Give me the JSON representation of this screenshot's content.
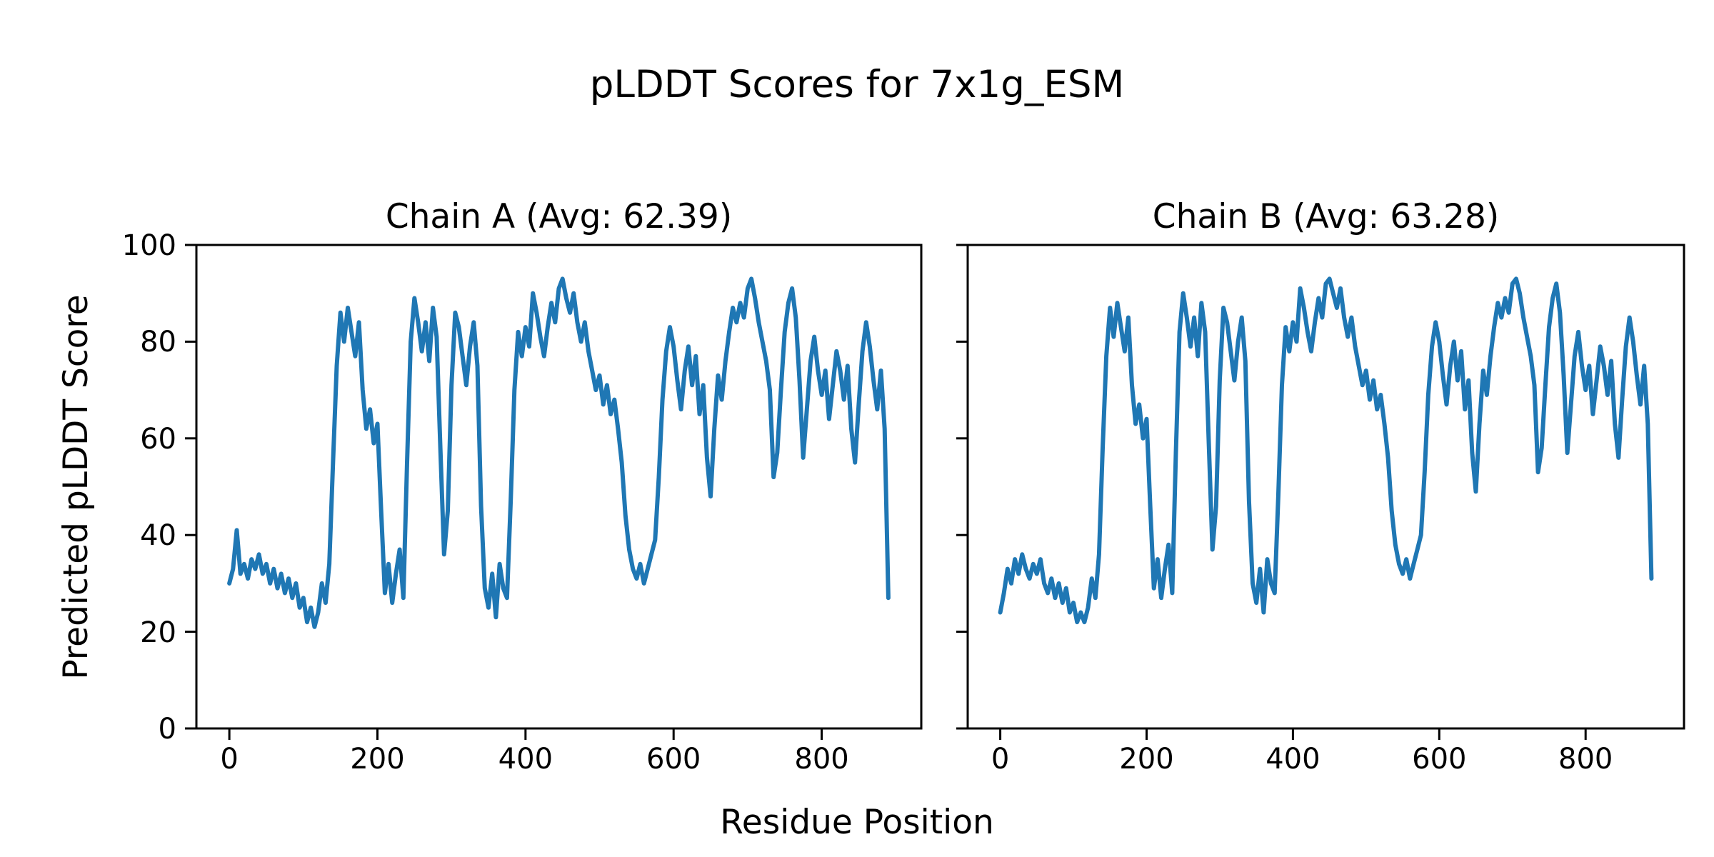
{
  "figure": {
    "suptitle": "pLDDT Scores for 7x1g_ESM",
    "xlabel": "Residue Position",
    "ylabel": "Predicted pLDDT Score",
    "background_color": "#ffffff",
    "text_color": "#000000",
    "line_color": "#1f77b4",
    "spine_color": "#000000"
  },
  "chart_data": [
    {
      "type": "line",
      "title": "Chain A (Avg: 62.39)",
      "average": 62.39,
      "xlabel": "Residue Position",
      "ylabel": "Predicted pLDDT Score",
      "xlim": [
        -44.5,
        934.5
      ],
      "ylim": [
        0,
        100
      ],
      "xticks": [
        0,
        200,
        400,
        600,
        800
      ],
      "yticks": [
        0,
        20,
        40,
        60,
        80,
        100
      ],
      "show_ytick_labels": true,
      "grid": false,
      "legend": false,
      "x_start": 0,
      "x_step": 5,
      "values": [
        30,
        33,
        41,
        32,
        34,
        31,
        35,
        33,
        36,
        32,
        34,
        30,
        33,
        29,
        32,
        28,
        31,
        27,
        30,
        25,
        27,
        22,
        25,
        21,
        24,
        30,
        26,
        34,
        55,
        75,
        86,
        80,
        87,
        82,
        77,
        84,
        70,
        62,
        66,
        59,
        63,
        45,
        28,
        34,
        26,
        32,
        37,
        27,
        55,
        80,
        89,
        84,
        78,
        84,
        76,
        87,
        81,
        58,
        36,
        45,
        71,
        86,
        83,
        77,
        71,
        79,
        84,
        75,
        46,
        29,
        25,
        32,
        23,
        34,
        29,
        27,
        47,
        70,
        82,
        77,
        83,
        79,
        90,
        86,
        81,
        77,
        83,
        88,
        84,
        91,
        93,
        89,
        86,
        90,
        84,
        80,
        84,
        78,
        74,
        70,
        73,
        67,
        71,
        65,
        68,
        62,
        55,
        44,
        37,
        33,
        31,
        34,
        30,
        33,
        36,
        39,
        52,
        68,
        78,
        83,
        79,
        72,
        66,
        74,
        79,
        71,
        77,
        65,
        71,
        56,
        48,
        62,
        73,
        68,
        76,
        82,
        87,
        84,
        88,
        85,
        91,
        93,
        89,
        84,
        80,
        76,
        70,
        52,
        57,
        70,
        82,
        88,
        91,
        85,
        72,
        56,
        66,
        76,
        81,
        74,
        69,
        74,
        64,
        71,
        78,
        74,
        68,
        75,
        62,
        55,
        67,
        78,
        84,
        79,
        72,
        66,
        74,
        62,
        27
      ]
    },
    {
      "type": "line",
      "title": "Chain B (Avg: 63.28)",
      "average": 63.28,
      "xlabel": "Residue Position",
      "ylabel": "Predicted pLDDT Score",
      "xlim": [
        -44.5,
        934.5
      ],
      "ylim": [
        0,
        100
      ],
      "xticks": [
        0,
        200,
        400,
        600,
        800
      ],
      "yticks": [
        0,
        20,
        40,
        60,
        80,
        100
      ],
      "show_ytick_labels": false,
      "grid": false,
      "legend": false,
      "x_start": 0,
      "x_step": 5,
      "values": [
        24,
        28,
        33,
        30,
        35,
        32,
        36,
        33,
        31,
        34,
        32,
        35,
        30,
        28,
        31,
        27,
        30,
        26,
        29,
        24,
        26,
        22,
        24,
        22,
        25,
        31,
        27,
        36,
        58,
        77,
        87,
        81,
        88,
        83,
        78,
        85,
        71,
        63,
        67,
        60,
        64,
        46,
        29,
        35,
        27,
        33,
        38,
        28,
        57,
        82,
        90,
        85,
        79,
        85,
        77,
        88,
        82,
        59,
        37,
        46,
        72,
        87,
        84,
        78,
        72,
        80,
        85,
        76,
        47,
        30,
        26,
        33,
        24,
        35,
        30,
        28,
        48,
        71,
        83,
        78,
        84,
        80,
        91,
        87,
        82,
        78,
        84,
        89,
        85,
        92,
        93,
        90,
        87,
        91,
        85,
        81,
        85,
        79,
        75,
        71,
        74,
        68,
        72,
        66,
        69,
        63,
        56,
        45,
        38,
        34,
        32,
        35,
        31,
        34,
        37,
        40,
        53,
        69,
        79,
        84,
        80,
        73,
        67,
        75,
        80,
        72,
        78,
        66,
        72,
        57,
        49,
        63,
        74,
        69,
        77,
        83,
        88,
        85,
        89,
        86,
        92,
        93,
        90,
        85,
        81,
        77,
        71,
        53,
        58,
        71,
        83,
        89,
        92,
        86,
        73,
        57,
        67,
        77,
        82,
        75,
        70,
        75,
        65,
        72,
        79,
        75,
        69,
        76,
        63,
        56,
        68,
        79,
        85,
        80,
        73,
        67,
        75,
        63,
        31
      ]
    }
  ]
}
